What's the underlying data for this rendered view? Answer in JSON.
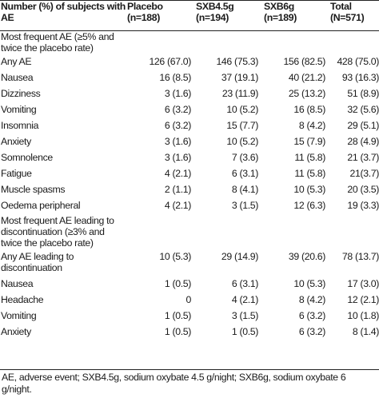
{
  "header": {
    "col0": "Number (%) of subjects with AE",
    "col1_line1": "Placebo",
    "col1_line2": "(n=188)",
    "col2_line1": "SXB4.5g",
    "col2_line2": "(n=194)",
    "col3_line1": "SXB6g",
    "col3_line2": "(n=189)",
    "col4_line1": "Total",
    "col4_line2": "(N=571)"
  },
  "section1": {
    "label": "Most frequent AE (≥5% and twice the placebo rate)",
    "rows": [
      {
        "label": "Any AE",
        "placebo": "126 (67.0)",
        "sxb45": "146 (75.3)",
        "sxb6": "156 (82.5)",
        "total": "428 (75.0)"
      },
      {
        "label": "Nausea",
        "placebo": "16 (8.5)",
        "sxb45": "37 (19.1)",
        "sxb6": "40 (21.2)",
        "total": "93 (16.3)"
      },
      {
        "label": "Dizziness",
        "placebo": "3 (1.6)",
        "sxb45": "23 (11.9)",
        "sxb6": "25 (13.2)",
        "total": "51 (8.9)"
      },
      {
        "label": "Vomiting",
        "placebo": "6 (3.2)",
        "sxb45": "10 (5.2)",
        "sxb6": "16 (8.5)",
        "total": "32 (5.6)"
      },
      {
        "label": "Insomnia",
        "placebo": "6 (3.2)",
        "sxb45": "15 (7.7)",
        "sxb6": "8 (4.2)",
        "total": "29 (5.1)"
      },
      {
        "label": "Anxiety",
        "placebo": "3 (1.6)",
        "sxb45": "10 (5.2)",
        "sxb6": "15 (7.9)",
        "total": "28 (4.9)"
      },
      {
        "label": "Somnolence",
        "placebo": "3 (1.6)",
        "sxb45": "7 (3.6)",
        "sxb6": "11 (5.8)",
        "total": "21 (3.7)"
      },
      {
        "label": "Fatigue",
        "placebo": "4 (2.1)",
        "sxb45": "6 (3.1)",
        "sxb6": "11 (5.8)",
        "total": "21(3.7)"
      },
      {
        "label": "Muscle spasms",
        "placebo": "2 (1.1)",
        "sxb45": "8 (4.1)",
        "sxb6": "10 (5.3)",
        "total": "20 (3.5)"
      },
      {
        "label": "Oedema peripheral",
        "placebo": "4 (2.1)",
        "sxb45": "3 (1.5)",
        "sxb6": "12 (6.3)",
        "total": "19 (3.3)"
      }
    ]
  },
  "section2": {
    "label": "Most frequent AE leading to discontinuation (≥3% and twice the placebo rate)",
    "rows": [
      {
        "label": "Any AE leading to discontinuation",
        "placebo": "10 (5.3)",
        "sxb45": "29 (14.9)",
        "sxb6": "39 (20.6)",
        "total": "78 (13.7)"
      },
      {
        "label": "Nausea",
        "placebo": "1 (0.5)",
        "sxb45": "6 (3.1)",
        "sxb6": "10 (5.3)",
        "total": "17 (3.0)"
      },
      {
        "label": "Headache",
        "placebo": "0",
        "sxb45": "4 (2.1)",
        "sxb6": "8 (4.2)",
        "total": "12 (2.1)"
      },
      {
        "label": "Vomiting",
        "placebo": "1 (0.5)",
        "sxb45": "3 (1.5)",
        "sxb6": "6 (3.2)",
        "total": "10 (1.8)"
      },
      {
        "label": "Anxiety",
        "placebo": "1 (0.5)",
        "sxb45": "1 (0.5)",
        "sxb6": "6 (3.2)",
        "total": "8 (1.4)"
      }
    ]
  },
  "footnote": "AE, adverse event; SXB4.5g, sodium oxybate 4.5 g/night; SXB6g, sodium oxybate 6 g/night."
}
